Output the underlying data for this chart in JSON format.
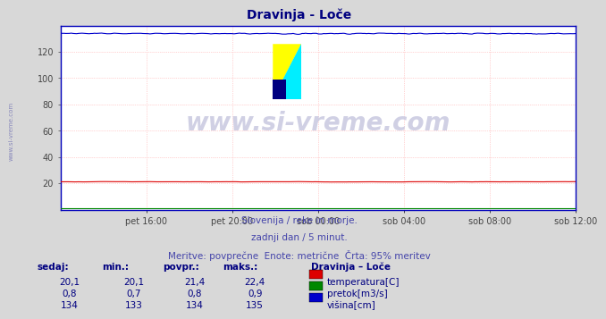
{
  "title": "Dravinja - Loče",
  "title_color": "#000080",
  "background_color": "#d8d8d8",
  "plot_bg_color": "#ffffff",
  "fig_width": 6.59,
  "fig_height": 3.46,
  "xlim": [
    0,
    288
  ],
  "ylim": [
    0,
    140
  ],
  "yticks": [
    20,
    40,
    60,
    80,
    100,
    120
  ],
  "xtick_labels": [
    "pet 16:00",
    "pet 20:00",
    "sob 00:00",
    "sob 04:00",
    "sob 08:00",
    "sob 12:00"
  ],
  "xtick_positions": [
    48,
    96,
    144,
    192,
    240,
    288
  ],
  "grid_color": "#ffaaaa",
  "grid_linewidth": 0.5,
  "temp_color": "#dd0000",
  "pretok_color": "#008800",
  "visina_color": "#0000cc",
  "watermark": "www.si-vreme.com",
  "watermark_color": "#c8c8e0",
  "left_label": "www.si-vreme.com",
  "left_label_color": "#8888bb",
  "subtitle1": "Slovenija / reke in morje.",
  "subtitle2": "zadnji dan / 5 minut.",
  "subtitle3": "Meritve: povprečne  Enote: metrične  Črta: 95% meritev",
  "subtitle_color": "#4444aa",
  "table_headers": [
    "sedaj:",
    "min.:",
    "povpr.:",
    "maks.:"
  ],
  "table_header_color": "#000080",
  "table_data_temp": [
    "20,1",
    "20,1",
    "21,4",
    "22,4"
  ],
  "table_data_pretok": [
    "0,8",
    "0,7",
    "0,8",
    "0,9"
  ],
  "table_data_visina": [
    "134",
    "133",
    "134",
    "135"
  ],
  "table_data_color": "#000080",
  "legend_title": "Dravinja – Loče",
  "legend_items": [
    "temperatura[C]",
    "pretok[m3/s]",
    "višina[cm]"
  ],
  "legend_colors": [
    "#dd0000",
    "#008800",
    "#0000cc"
  ],
  "visina_level": 134,
  "temp_level": 21.0,
  "pretok_level": 0.8
}
